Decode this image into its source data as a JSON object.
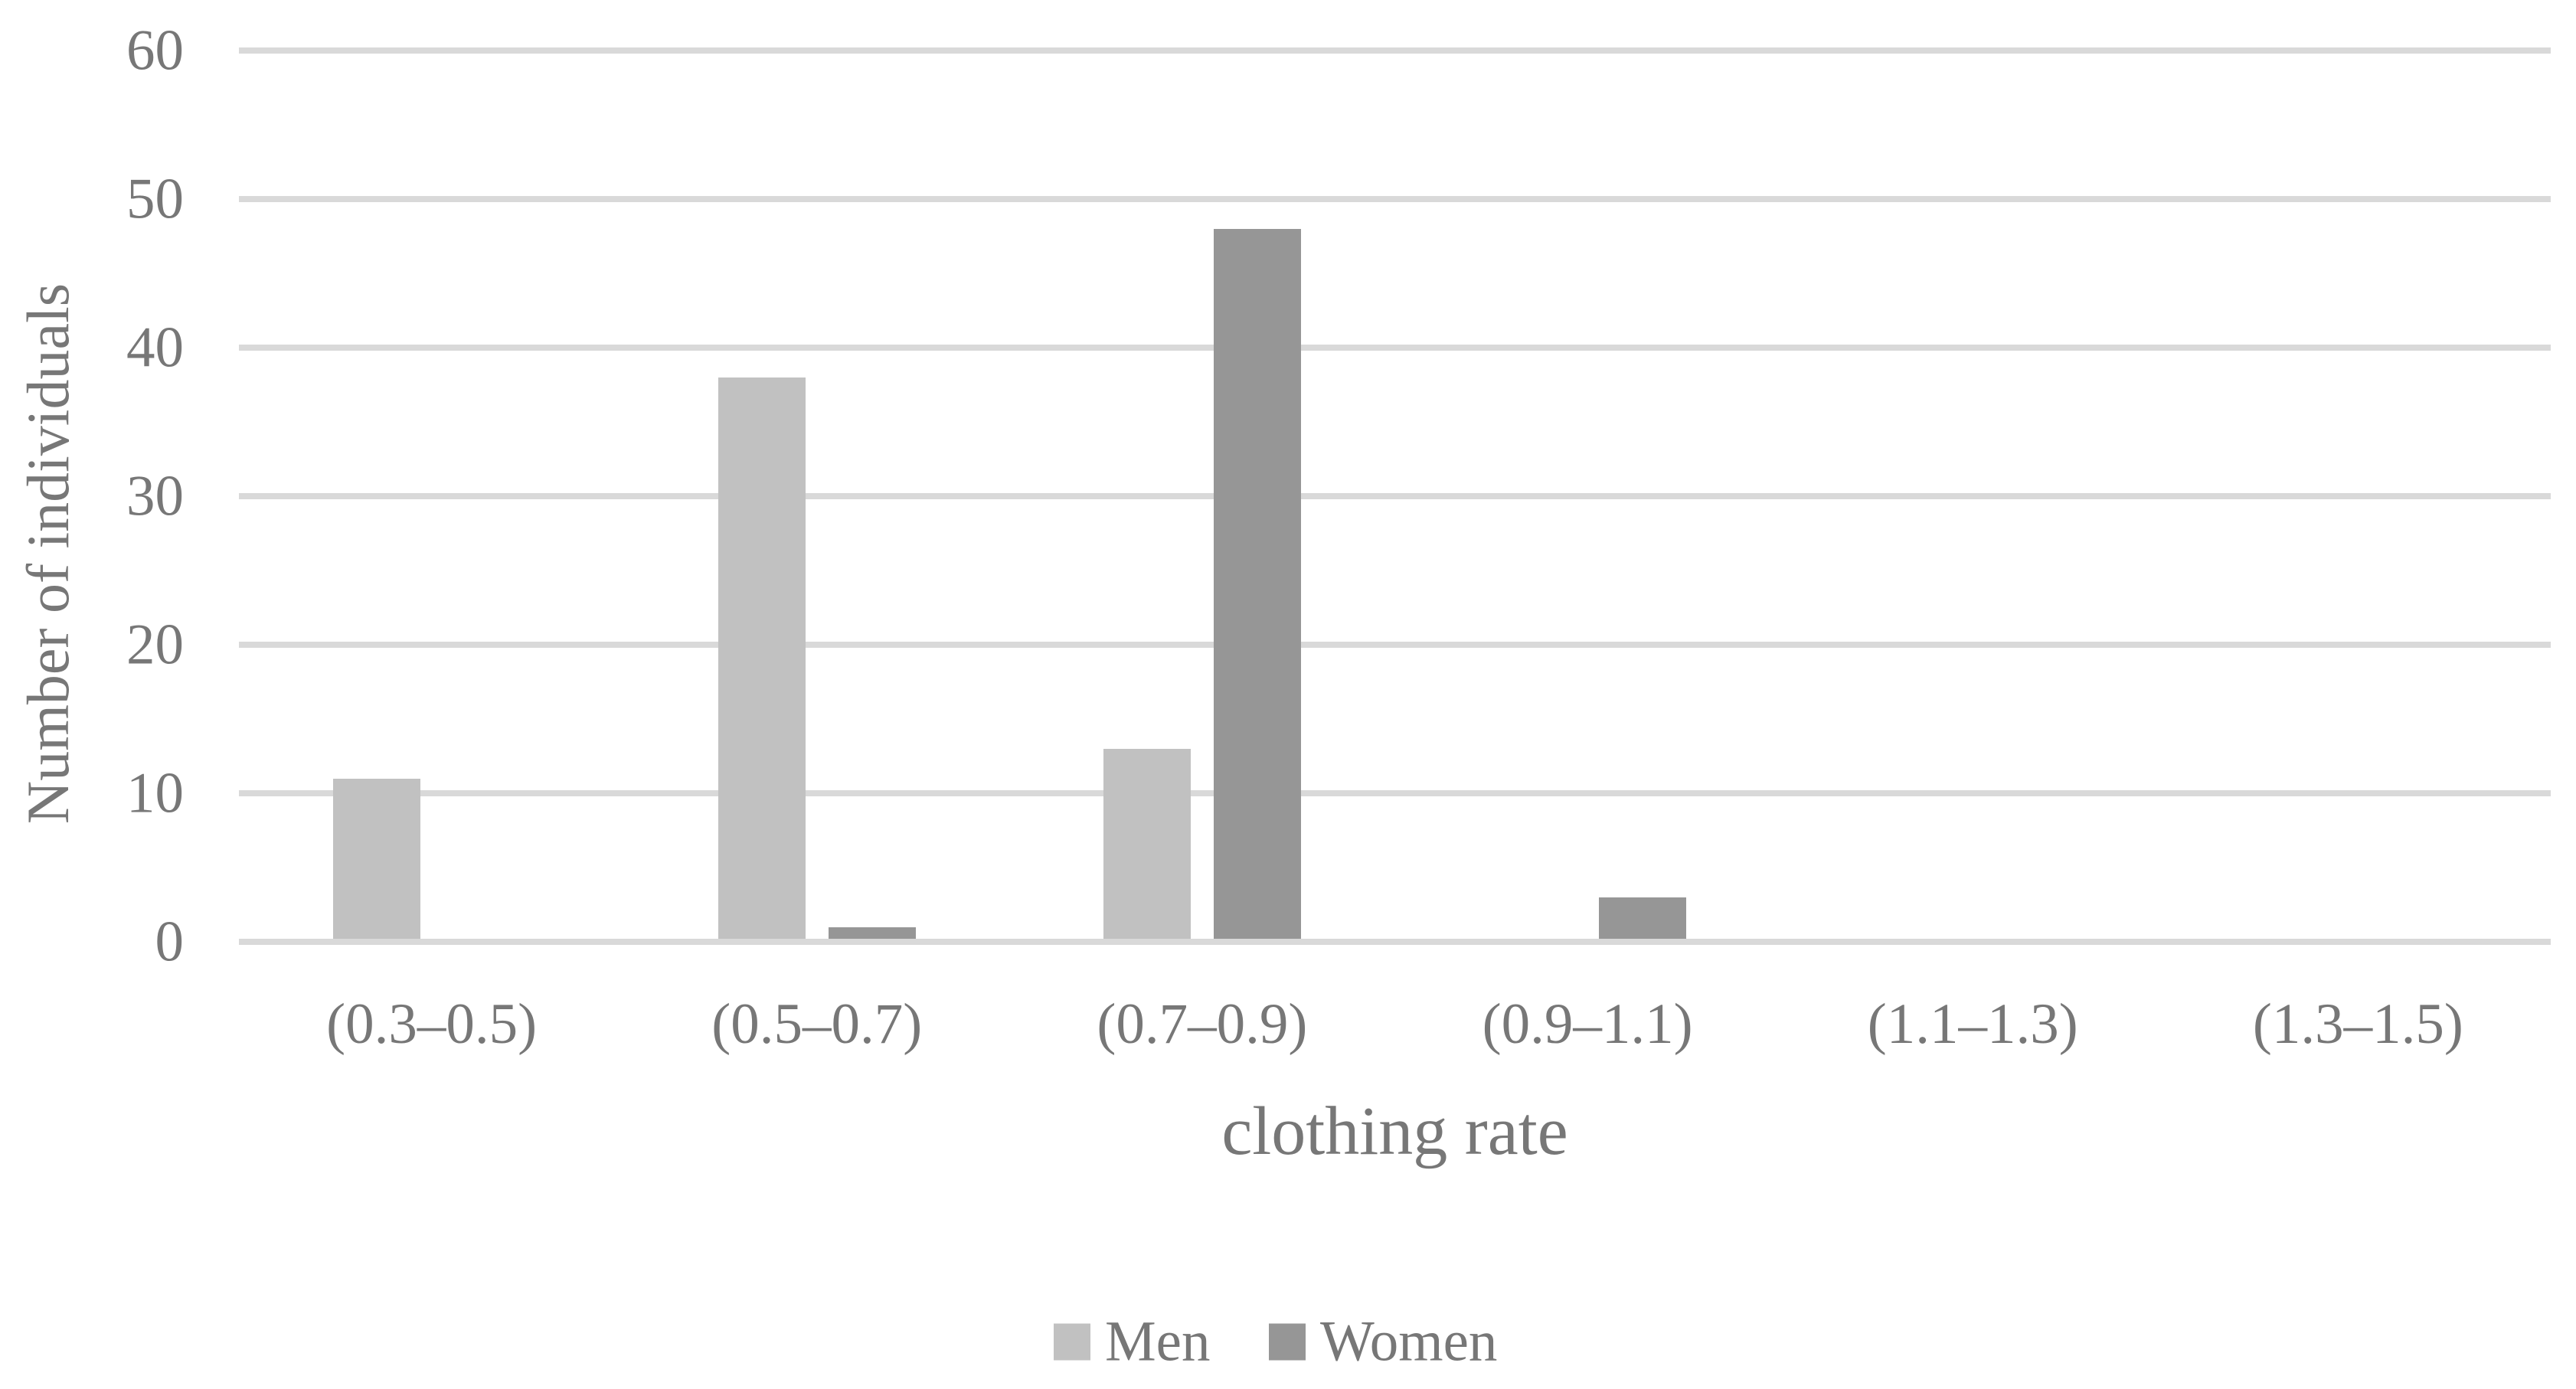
{
  "chart_data": {
    "type": "bar",
    "title": "",
    "categories": [
      "(0.3–0.5)",
      "(0.5–0.7)",
      "(0.7–0.9)",
      "(0.9–1.1)",
      "(1.1–1.3)",
      "(1.3–1.5)"
    ],
    "series": [
      {
        "name": "Men",
        "color": "#c1c1c1",
        "values": [
          11,
          38,
          13,
          0,
          0,
          0
        ]
      },
      {
        "name": "Women",
        "color": "#969696",
        "values": [
          0,
          1,
          48,
          3,
          0,
          0
        ]
      }
    ],
    "xlabel": "clothing rate",
    "ylabel": "Number of individuals",
    "ylim": [
      0,
      60
    ],
    "yticks": [
      0,
      10,
      20,
      30,
      40,
      50,
      60
    ],
    "grid": true,
    "legend_position": "bottom-center",
    "colors": {
      "gridline": "#d9d9d9",
      "axis_line": "#d9d9d9",
      "text": "#777777",
      "background": "#ffffff"
    }
  }
}
